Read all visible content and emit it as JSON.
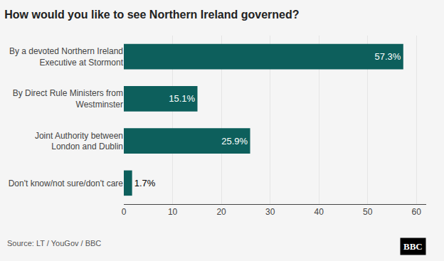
{
  "chart_data": {
    "type": "bar",
    "orientation": "horizontal",
    "title": "How would you like to see Northern Ireland governed?",
    "categories": [
      "By a devoted Northern Ireland\nExecutive at Stormont",
      "By Direct Rule Ministers from\nWestminster",
      "Joint Authority between\nLondon and Dublin",
      "Don't know/not sure/don't care"
    ],
    "values": [
      57.3,
      15.1,
      25.9,
      1.7
    ],
    "value_labels": [
      "57.3%",
      "15.1%",
      "25.9%",
      "1.7%"
    ],
    "data_labels": true,
    "color": "#0d5f5c",
    "xlim": [
      0,
      62
    ],
    "xticks": [
      0,
      10,
      20,
      30,
      40,
      50,
      60
    ],
    "grid": true,
    "annotations": [
      "Source: LT / YouGov / BBC",
      "BBC"
    ]
  }
}
